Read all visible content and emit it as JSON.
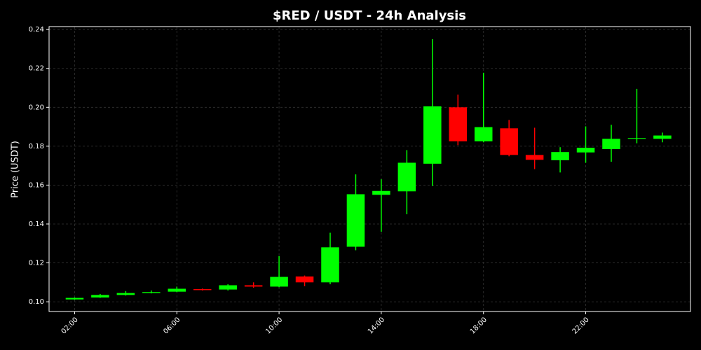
{
  "chart_data": {
    "type": "candlestick",
    "title": "$RED / USDT - 24h Analysis",
    "y_label": "Price (USDT)",
    "x": [
      2,
      3,
      4,
      5,
      6,
      7,
      8,
      9,
      10,
      11,
      12,
      13,
      14,
      15,
      16,
      17,
      18,
      19,
      20,
      21,
      22,
      23,
      24,
      25
    ],
    "open": [
      0.1012,
      0.1022,
      0.1035,
      0.1045,
      0.1052,
      0.1065,
      0.1063,
      0.1085,
      0.1078,
      0.113,
      0.11,
      0.1283,
      0.155,
      0.1568,
      0.171,
      0.2,
      0.1825,
      0.1892,
      0.1755,
      0.1728,
      0.1768,
      0.1785,
      0.1838,
      0.1838
    ],
    "high": [
      0.1022,
      0.104,
      0.1055,
      0.1058,
      0.1078,
      0.1068,
      0.109,
      0.11,
      0.1235,
      0.1135,
      0.1355,
      0.1655,
      0.163,
      0.178,
      0.235,
      0.2065,
      0.2178,
      0.1935,
      0.1895,
      0.1795,
      0.1902,
      0.191,
      0.2095,
      0.187
    ],
    "low": [
      0.101,
      0.102,
      0.1032,
      0.1043,
      0.105,
      0.1058,
      0.1058,
      0.1072,
      0.1075,
      0.108,
      0.109,
      0.1265,
      0.136,
      0.145,
      0.1595,
      0.1805,
      0.182,
      0.1748,
      0.1682,
      0.1665,
      0.1715,
      0.172,
      0.1815,
      0.182
    ],
    "close": [
      0.102,
      0.1035,
      0.1045,
      0.105,
      0.1067,
      0.106,
      0.1085,
      0.1078,
      0.1128,
      0.11,
      0.128,
      0.1553,
      0.157,
      0.1715,
      0.2005,
      0.1825,
      0.1898,
      0.1755,
      0.173,
      0.177,
      0.1792,
      0.1838,
      0.1842,
      0.1855
    ],
    "up_color": "#00ff00",
    "down_color": "#ff0000",
    "xlim": [
      1.0,
      26.1
    ],
    "xticks": [
      {
        "value": 2,
        "label": "02:00"
      },
      {
        "value": 6,
        "label": "06:00"
      },
      {
        "value": 10,
        "label": "10:00"
      },
      {
        "value": 14,
        "label": "14:00"
      },
      {
        "value": 18,
        "label": "18:00"
      },
      {
        "value": 22,
        "label": "22:00"
      }
    ],
    "ylim": [
      0.095,
      0.2415
    ],
    "yticks": [
      {
        "value": 0.1,
        "label": "0.10"
      },
      {
        "value": 0.12,
        "label": "0.12"
      },
      {
        "value": 0.14,
        "label": "0.14"
      },
      {
        "value": 0.16,
        "label": "0.16"
      },
      {
        "value": 0.18,
        "label": "0.18"
      },
      {
        "value": 0.2,
        "label": "0.20"
      },
      {
        "value": 0.22,
        "label": "0.22"
      },
      {
        "value": 0.24,
        "label": "0.24"
      }
    ],
    "grid": true
  }
}
